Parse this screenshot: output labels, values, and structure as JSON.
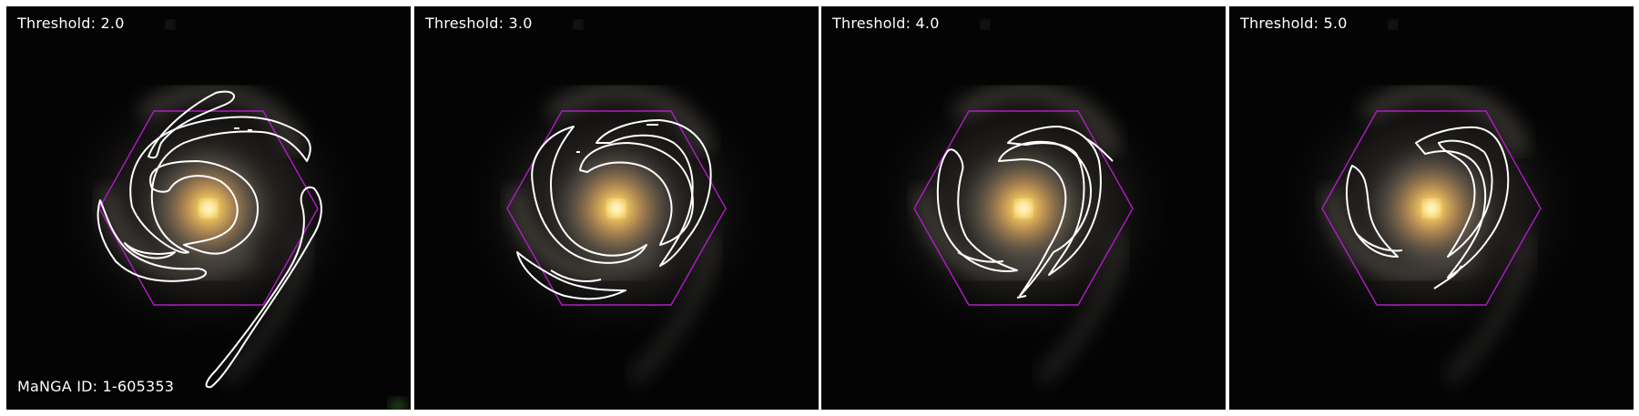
{
  "panels": [
    {
      "threshold_label": "Threshold: 2.0"
    },
    {
      "threshold_label": "Threshold: 3.0"
    },
    {
      "threshold_label": "Threshold: 4.0"
    },
    {
      "threshold_label": "Threshold: 5.0"
    }
  ],
  "manga_id_label": "MaNGA ID: 1-605353",
  "colors": {
    "background": "#050505",
    "galaxy_core": "#ffe49a",
    "galaxy_bulge": "#c9a062",
    "arms": "#8c8c8c",
    "contour": "#ffffff",
    "ifu_hexagon": "#b01cc4"
  }
}
